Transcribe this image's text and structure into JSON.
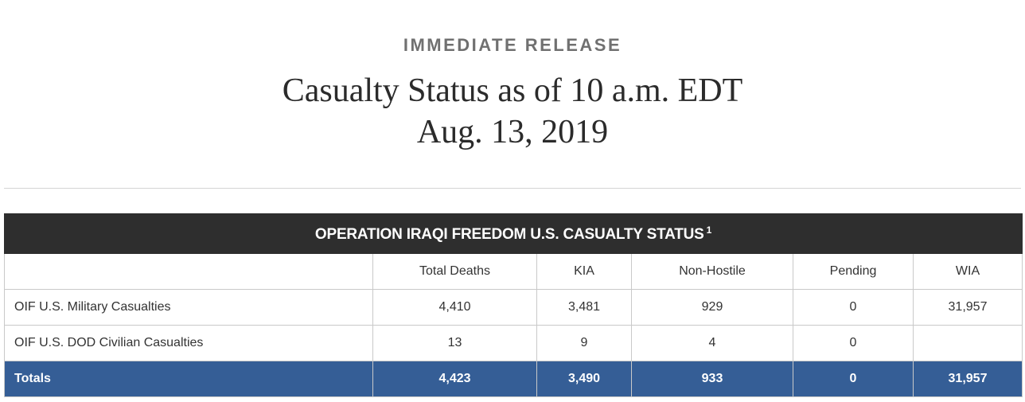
{
  "header": {
    "kicker": "IMMEDIATE RELEASE",
    "title_line1": "Casualty Status as of 10 a.m. EDT",
    "title_line2": "Aug. 13, 2019"
  },
  "table": {
    "caption": "OPERATION IRAQI FREEDOM U.S. CASUALTY STATUS",
    "footnote_marker": "1",
    "columns": [
      "",
      "Total Deaths",
      "KIA",
      "Non-Hostile",
      "Pending",
      "WIA"
    ],
    "rows": [
      {
        "label": "OIF U.S. Military Casualties",
        "total_deaths": "4,410",
        "kia": "3,481",
        "non_hostile": "929",
        "pending": "0",
        "wia": "31,957"
      },
      {
        "label": "OIF U.S. DOD Civilian Casualties",
        "total_deaths": "13",
        "kia": "9",
        "non_hostile": "4",
        "pending": "0",
        "wia": ""
      }
    ],
    "totals": {
      "label": "Totals",
      "total_deaths": "4,423",
      "kia": "3,490",
      "non_hostile": "933",
      "pending": "0",
      "wia": "31,957"
    }
  },
  "colors": {
    "caption_bg": "#2e2e2e",
    "totals_bg": "#355e96",
    "kicker_text": "#707070",
    "title_text": "#2b2b2b"
  }
}
